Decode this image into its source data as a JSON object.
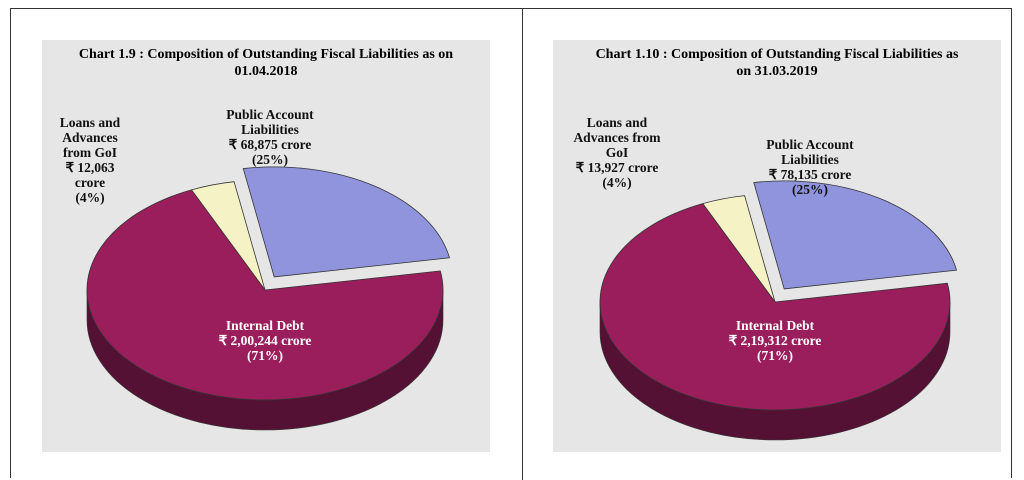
{
  "chart_data": [
    {
      "type": "pie",
      "title": "Chart 1.9 : Composition of Outstanding Fiscal Liabilities as on 01.04.2018",
      "categories": [
        "Loans and Advances from GoI",
        "Public Account Liabilities",
        "Internal Debt"
      ],
      "values": [
        4,
        25,
        71
      ],
      "value_labels": [
        "(4%)",
        "(25%)",
        "(71%)"
      ],
      "amount_labels": [
        "₹ 12,063 crore",
        "₹ 68,875 crore",
        "₹ 2,00,244 crore"
      ],
      "colors": [
        "#f5f2c6",
        "#9094dc",
        "#9a1e5c"
      ]
    },
    {
      "type": "pie",
      "title": "Chart 1.10 : Composition of Outstanding Fiscal Liabilities as on 31.03.2019",
      "categories": [
        "Loans and Advances from GoI",
        "Public Account Liabilities",
        "Internal Debt"
      ],
      "values": [
        4,
        25,
        71
      ],
      "value_labels": [
        "(4%)",
        "(25%)",
        "(71%)"
      ],
      "amount_labels": [
        "₹ 13,927 crore",
        "₹ 78,135 crore",
        "₹ 2,19,312 crore"
      ],
      "colors": [
        "#f5f2c6",
        "#9094dc",
        "#9a1e5c"
      ]
    }
  ]
}
